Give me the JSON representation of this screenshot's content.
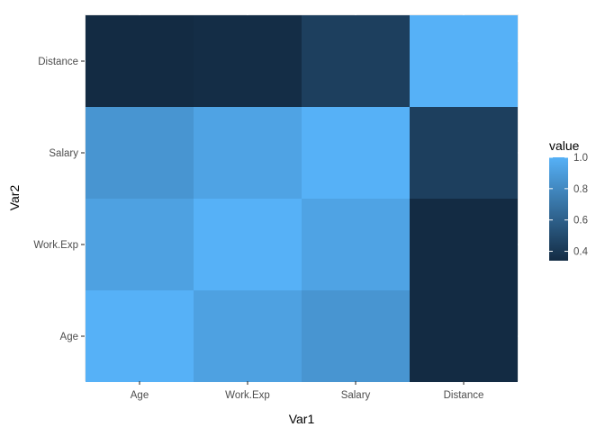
{
  "chart_data": {
    "type": "heatmap",
    "title": "",
    "xlabel": "Var1",
    "ylabel": "Var2",
    "x_categories": [
      "Age",
      "Work.Exp",
      "Salary",
      "Distance"
    ],
    "y_categories": [
      "Age",
      "Work.Exp",
      "Salary",
      "Distance"
    ],
    "cells": [
      {
        "x": "Age",
        "y": "Age",
        "value": 1.0
      },
      {
        "x": "Work.Exp",
        "y": "Age",
        "value": 0.92
      },
      {
        "x": "Salary",
        "y": "Age",
        "value": 0.86
      },
      {
        "x": "Distance",
        "y": "Age",
        "value": 0.34
      },
      {
        "x": "Age",
        "y": "Work.Exp",
        "value": 0.92
      },
      {
        "x": "Work.Exp",
        "y": "Work.Exp",
        "value": 1.0
      },
      {
        "x": "Salary",
        "y": "Work.Exp",
        "value": 0.93
      },
      {
        "x": "Distance",
        "y": "Work.Exp",
        "value": 0.34
      },
      {
        "x": "Age",
        "y": "Salary",
        "value": 0.86
      },
      {
        "x": "Work.Exp",
        "y": "Salary",
        "value": 0.93
      },
      {
        "x": "Salary",
        "y": "Salary",
        "value": 1.0
      },
      {
        "x": "Distance",
        "y": "Salary",
        "value": 0.44
      },
      {
        "x": "Age",
        "y": "Distance",
        "value": 0.34
      },
      {
        "x": "Work.Exp",
        "y": "Distance",
        "value": 0.35
      },
      {
        "x": "Salary",
        "y": "Distance",
        "value": 0.44
      },
      {
        "x": "Distance",
        "y": "Distance",
        "value": 1.0
      }
    ],
    "legend": {
      "title": "value",
      "position": "right",
      "min": 0.34,
      "max": 1.0,
      "breaks": [
        0.4,
        0.6,
        0.8,
        1.0
      ],
      "break_labels": [
        "0.4",
        "0.6",
        "0.8",
        "1.0"
      ],
      "low_color": "#132B43",
      "high_color": "#56B1F7"
    },
    "grid": true,
    "panel_background": "#EBEBEB",
    "grid_color": "#FFFFFF"
  }
}
